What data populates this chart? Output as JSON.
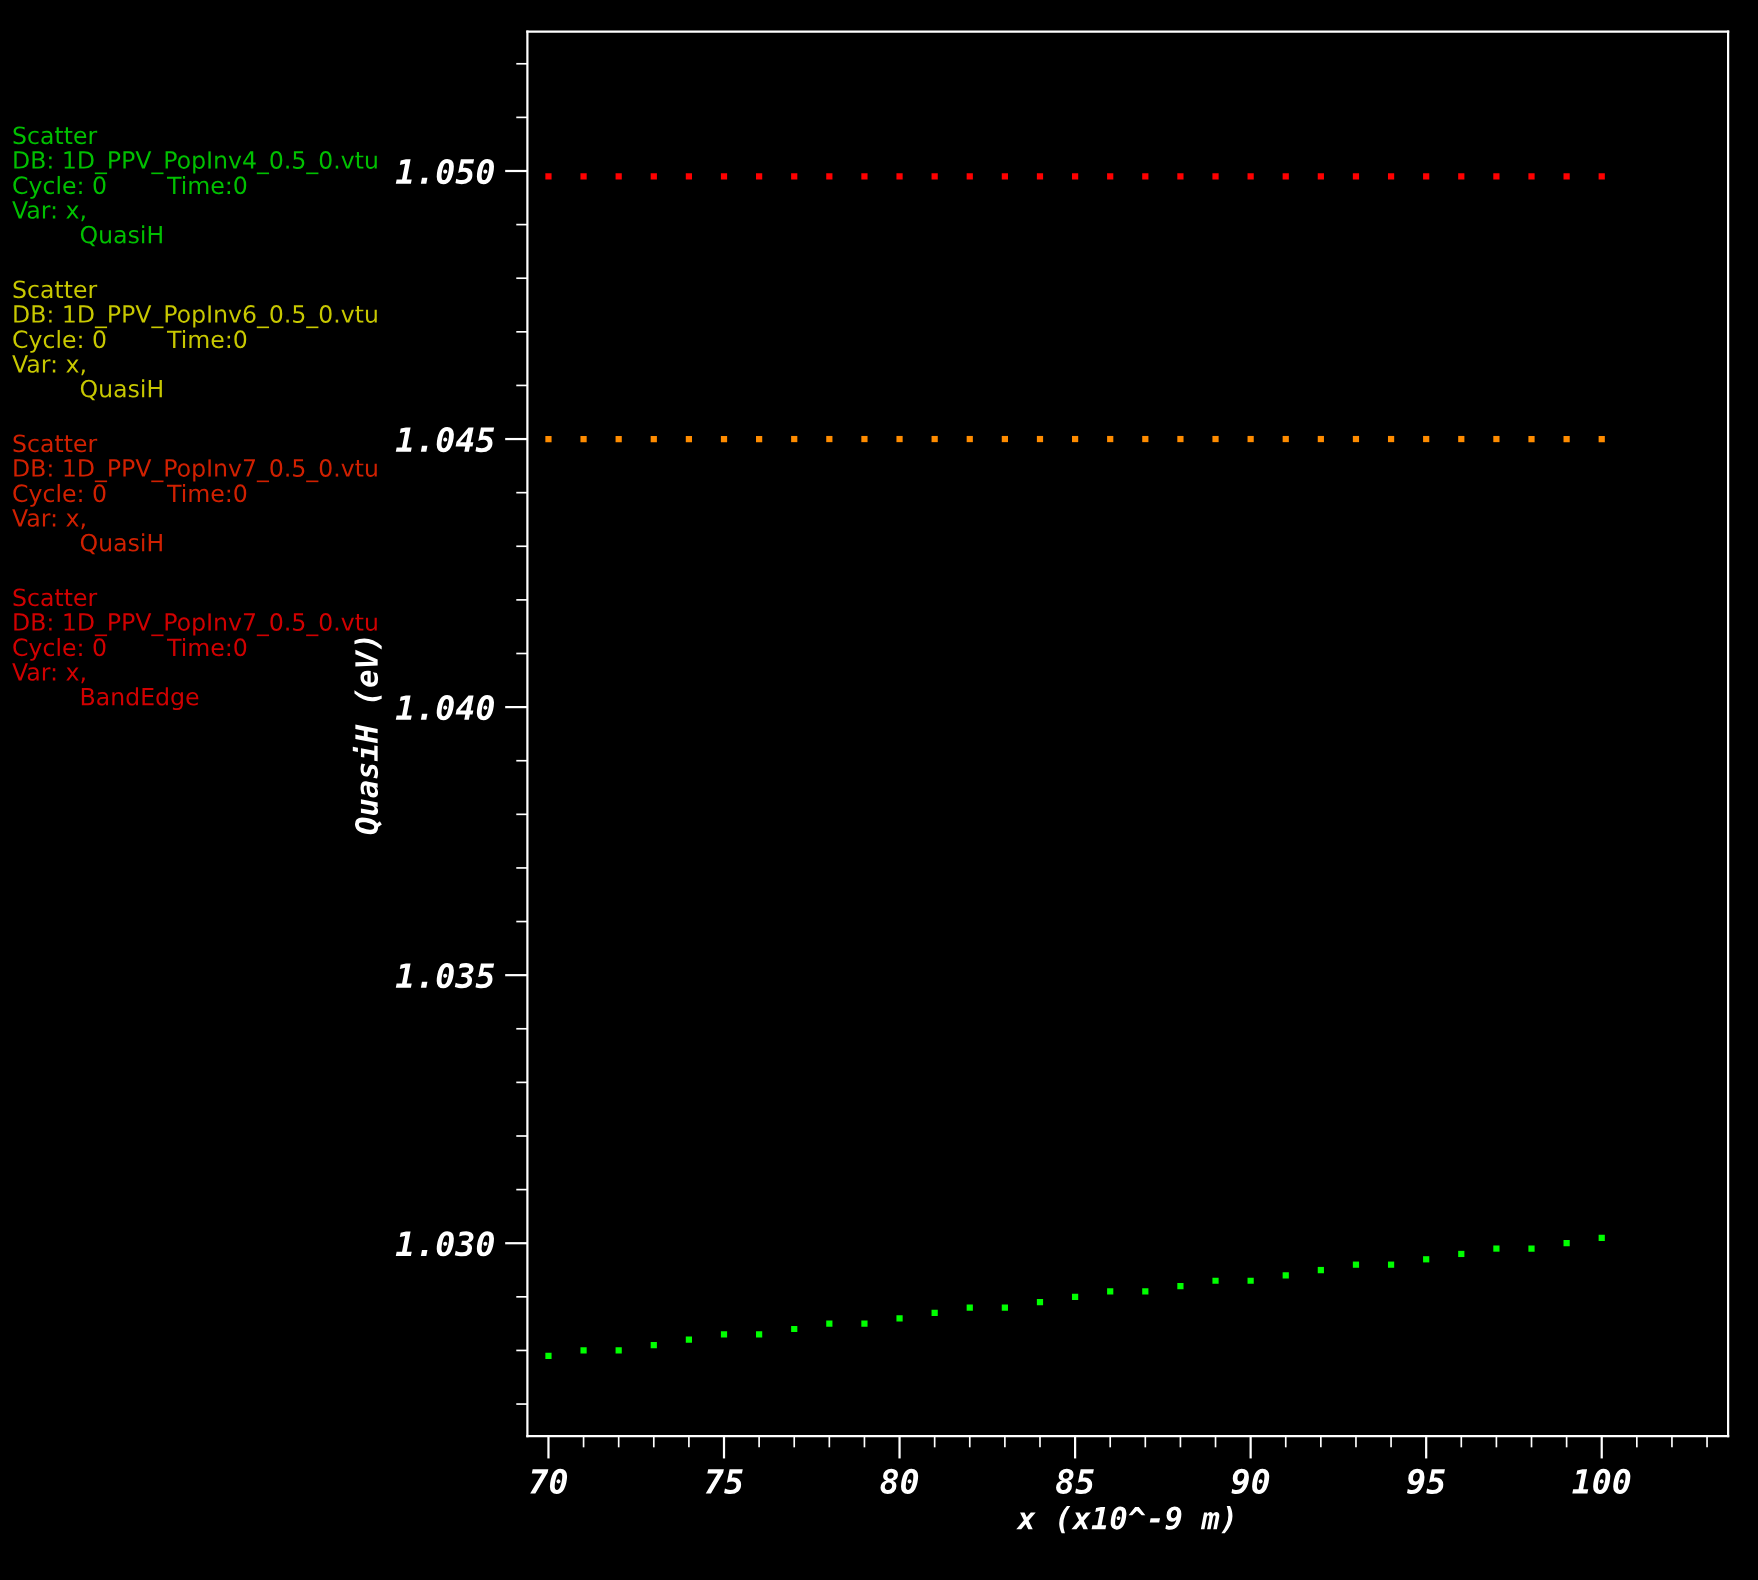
{
  "chart_data": {
    "type": "scatter",
    "xlabel": "x (x10^-9 m)",
    "ylabel": "QuasiH (eV)",
    "annotations": [
      "Scatter\nDB: 1D_PPV_PopInv4_0.5_0.vtu\nCycle: 0        Time:0\nVar: x,\n         QuasiH",
      "Scatter\nDB: 1D_PPV_PopInv6_0.5_0.vtu\nCycle: 0        Time:0\nVar: x,\n         QuasiH",
      "Scatter\nDB: 1D_PPV_PopInv7_0.5_0.vtu\nCycle: 0        Time:0\nVar: x,\n         QuasiH",
      "Scatter\nDB: 1D_PPV_PopInv7_0.5_0.vtu\nCycle: 0        Time:0\nVar: x,\n         BandEdge"
    ],
    "x": [
      70,
      71,
      72,
      73,
      74,
      75,
      76,
      77,
      78,
      79,
      80,
      81,
      82,
      83,
      84,
      85,
      86,
      87,
      88,
      89,
      90,
      91,
      92,
      93,
      94,
      95,
      96,
      97,
      98,
      99,
      100
    ],
    "series": [
      {
        "color": "#ff0000",
        "values": [
          1.0499,
          1.0499,
          1.0499,
          1.0499,
          1.0499,
          1.0499,
          1.0499,
          1.0499,
          1.0499,
          1.0499,
          1.0499,
          1.0499,
          1.0499,
          1.0499,
          1.0499,
          1.0499,
          1.0499,
          1.0499,
          1.0499,
          1.0499,
          1.0499,
          1.0499,
          1.0499,
          1.0499,
          1.0499,
          1.0499,
          1.0499,
          1.0499,
          1.0499,
          1.0499,
          1.0499
        ]
      },
      {
        "color": "#ff8c00",
        "values": [
          1.045,
          1.045,
          1.045,
          1.045,
          1.045,
          1.045,
          1.045,
          1.045,
          1.045,
          1.045,
          1.045,
          1.045,
          1.045,
          1.045,
          1.045,
          1.045,
          1.045,
          1.045,
          1.045,
          1.045,
          1.045,
          1.045,
          1.045,
          1.045,
          1.045,
          1.045,
          1.045,
          1.045,
          1.045,
          1.045,
          1.045
        ]
      },
      {
        "color": "#00ff00",
        "values": [
          1.0279,
          1.028,
          1.028,
          1.0281,
          1.0282,
          1.0283,
          1.0283,
          1.0284,
          1.0285,
          1.0285,
          1.0286,
          1.0287,
          1.0288,
          1.0288,
          1.0289,
          1.029,
          1.0291,
          1.0291,
          1.0292,
          1.0293,
          1.0293,
          1.0294,
          1.0295,
          1.0296,
          1.0296,
          1.0297,
          1.0298,
          1.0299,
          1.0299,
          1.03,
          1.0301
        ]
      }
    ],
    "xlim": [
      69.4,
      103.6
    ],
    "ylim": [
      1.0264,
      1.0526
    ],
    "xticks": [
      70,
      75,
      80,
      85,
      90,
      95,
      100
    ],
    "yticks": [
      {
        "value": 1.03,
        "label": "1.030"
      },
      {
        "value": 1.035,
        "label": "1.035"
      },
      {
        "value": 1.04,
        "label": "1.040"
      },
      {
        "value": 1.045,
        "label": "1.045"
      },
      {
        "value": 1.05,
        "label": "1.050"
      }
    ],
    "marker": "square",
    "grid": false,
    "legend": false
  }
}
